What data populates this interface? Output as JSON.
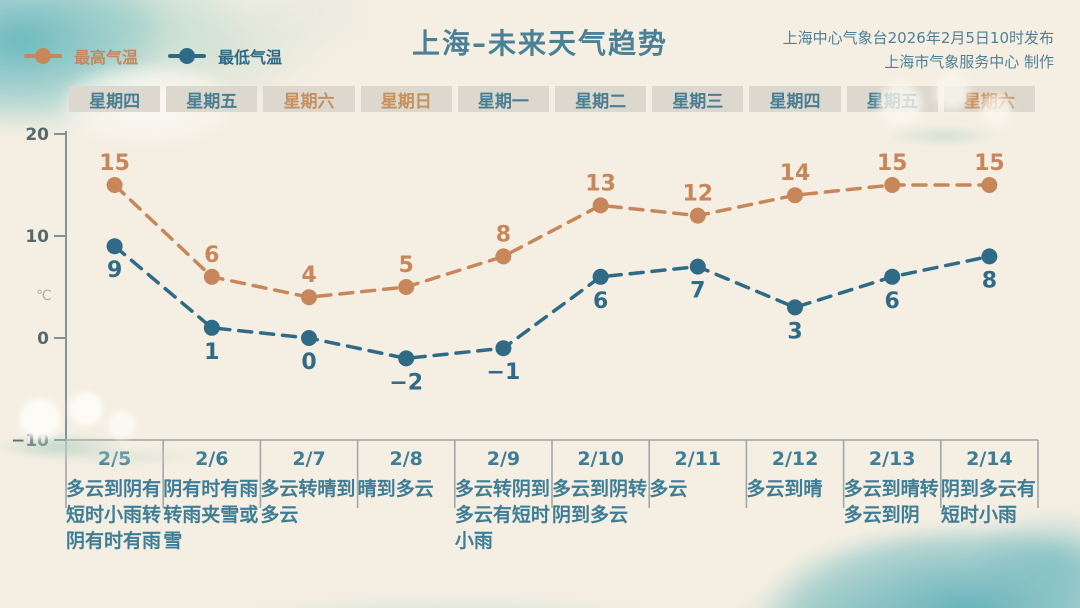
{
  "title": "上海–未来天气趋势",
  "publisher": {
    "line1": "上海中心气象台2026年2月5日10时发布",
    "line2": "上海市气象服务中心 制作"
  },
  "legend": [
    {
      "label": "最高气温",
      "color": "#c8875a"
    },
    {
      "label": "最低气温",
      "color": "#2f6b86"
    }
  ],
  "days": [
    {
      "weekday": "星期四",
      "weekend": false,
      "date": "2/5",
      "weather": "多云到阴有短时小雨转阴有时有雨"
    },
    {
      "weekday": "星期五",
      "weekend": false,
      "date": "2/6",
      "weather": "阴有时有雨转雨夹雪或雪"
    },
    {
      "weekday": "星期六",
      "weekend": true,
      "date": "2/7",
      "weather": "多云转晴到多云"
    },
    {
      "weekday": "星期日",
      "weekend": true,
      "date": "2/8",
      "weather": "晴到多云"
    },
    {
      "weekday": "星期一",
      "weekend": false,
      "date": "2/9",
      "weather": "多云转阴到多云有短时小雨"
    },
    {
      "weekday": "星期二",
      "weekend": false,
      "date": "2/10",
      "weather": "多云到阴转阴到多云"
    },
    {
      "weekday": "星期三",
      "weekend": false,
      "date": "2/11",
      "weather": "多云"
    },
    {
      "weekday": "星期四",
      "weekend": false,
      "date": "2/12",
      "weather": "多云到晴"
    },
    {
      "weekday": "星期五",
      "weekend": false,
      "date": "2/13",
      "weather": "多云到晴转多云到阴"
    },
    {
      "weekday": "星期六",
      "weekend": true,
      "date": "2/14",
      "weather": "阴到多云有短时小雨"
    }
  ],
  "chart_data": {
    "type": "line",
    "x": [
      "2/5",
      "2/6",
      "2/7",
      "2/8",
      "2/9",
      "2/10",
      "2/11",
      "2/12",
      "2/13",
      "2/14"
    ],
    "series": [
      {
        "name": "最高气温",
        "color": "#c8875a",
        "values": [
          15,
          6,
          4,
          5,
          8,
          13,
          12,
          14,
          15,
          15
        ]
      },
      {
        "name": "最低气温",
        "color": "#2f6b86",
        "values": [
          9,
          1,
          0,
          -2,
          -1,
          6,
          7,
          3,
          6,
          8
        ]
      }
    ],
    "ylabel": "℃",
    "ylim": [
      -10,
      20
    ],
    "yticks": [
      20,
      10,
      0,
      -10
    ],
    "grid": false,
    "line_style": "dashed",
    "legend_position": "top-left"
  },
  "colors": {
    "background": "#f5efe3",
    "high_temp": "#c8875a",
    "low_temp": "#2f6b86",
    "title_text": "#4a8197",
    "axis": "#7e939b",
    "tick_label": "#55696f",
    "table_line": "#9aa5a4",
    "date_text": "#3e7d96",
    "weekday_bg": "#dcd8ce",
    "weekday_text": "#4a7e94",
    "weekday_weekend_text": "#c8905c",
    "unit_label": "#b3aca0",
    "watercolor": "#5cb2bb"
  }
}
